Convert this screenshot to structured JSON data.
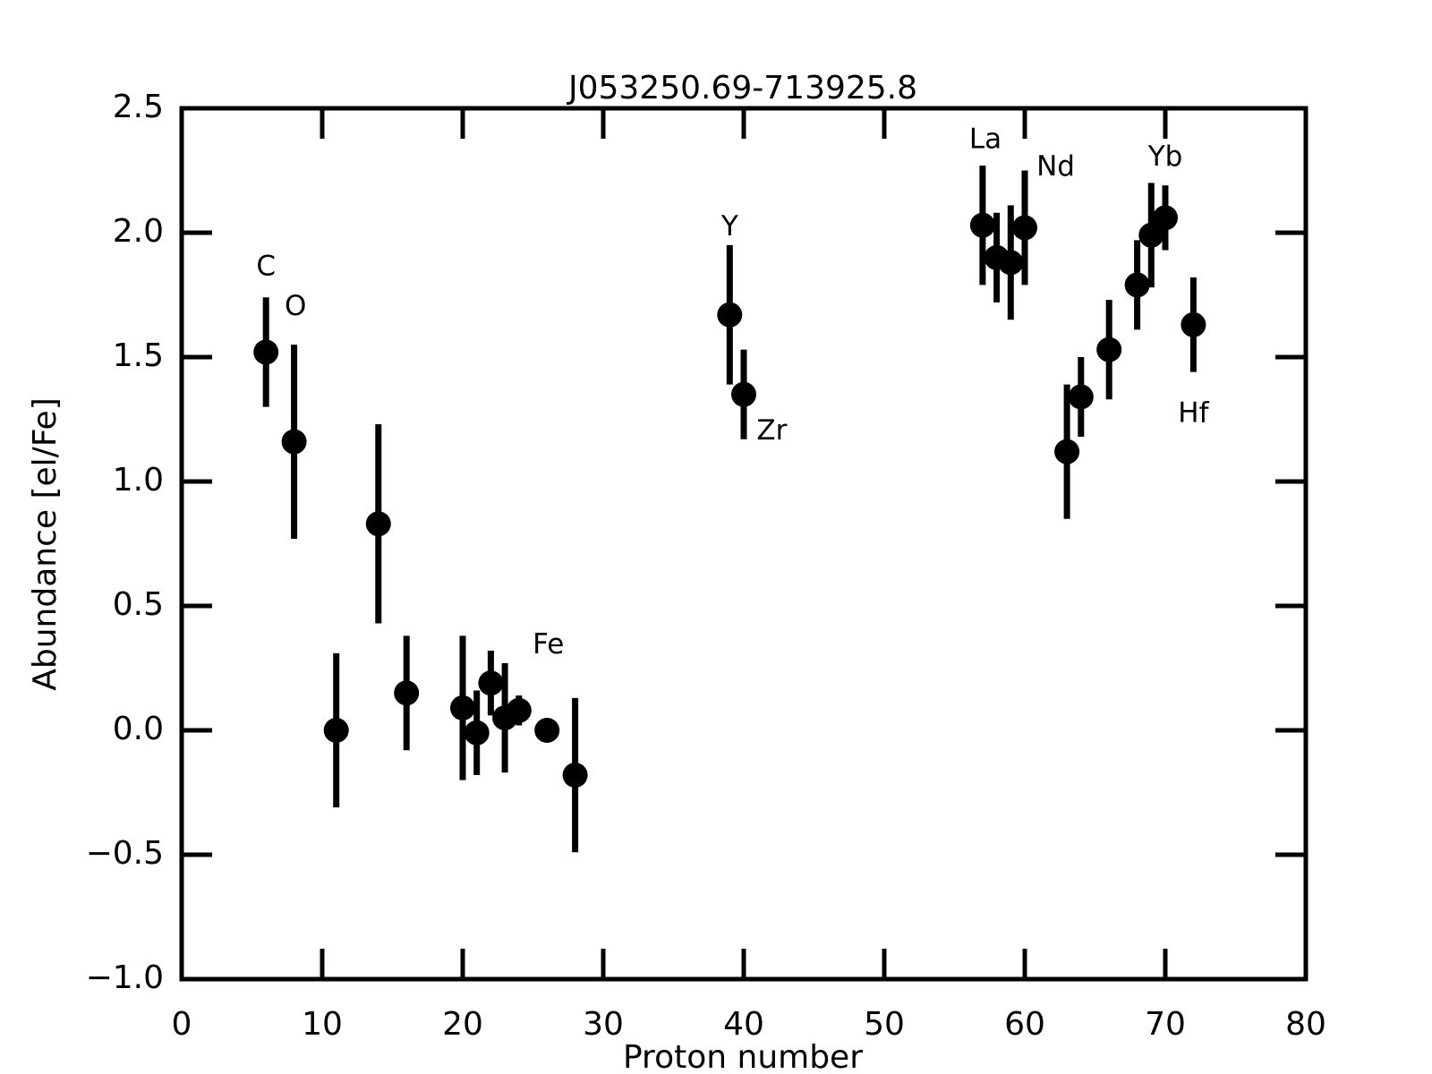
{
  "chart_data": {
    "type": "errorbar",
    "title": "J053250.69-713925.8",
    "xlabel": "Proton number",
    "ylabel": "Abundance [el/Fe]",
    "color": "#000000",
    "x": [
      6,
      8,
      11,
      14,
      16,
      20,
      21,
      22,
      23,
      24,
      26,
      28,
      39,
      40,
      57,
      58,
      59,
      60,
      63,
      64,
      66,
      68,
      69,
      70,
      72
    ],
    "values": [
      1.52,
      1.16,
      0.0,
      0.83,
      0.15,
      0.09,
      -0.01,
      0.19,
      0.05,
      0.08,
      0.0,
      -0.18,
      1.67,
      1.35,
      2.03,
      1.9,
      1.88,
      2.02,
      1.12,
      1.34,
      1.53,
      1.79,
      1.99,
      2.06,
      1.63
    ],
    "errors": [
      0.22,
      0.39,
      0.31,
      0.4,
      0.23,
      0.29,
      0.17,
      0.13,
      0.22,
      0.06,
      0.0,
      0.31,
      0.28,
      0.18,
      0.24,
      0.18,
      0.23,
      0.23,
      0.27,
      0.16,
      0.2,
      0.18,
      0.21,
      0.13,
      0.19
    ],
    "annotations": [
      {
        "text": "C",
        "x": 6,
        "y": 1.86
      },
      {
        "text": "O",
        "x": 8.1,
        "y": 1.7
      },
      {
        "text": "Fe",
        "x": 26.1,
        "y": 0.34
      },
      {
        "text": "Y",
        "x": 39,
        "y": 2.02
      },
      {
        "text": "Zr",
        "x": 42,
        "y": 1.2
      },
      {
        "text": "La",
        "x": 57.2,
        "y": 2.37
      },
      {
        "text": "Nd",
        "x": 62.2,
        "y": 2.26
      },
      {
        "text": "Yb",
        "x": 70,
        "y": 2.3
      },
      {
        "text": "Hf",
        "x": 72,
        "y": 1.27
      }
    ],
    "xlim": [
      0,
      80
    ],
    "xticks": [
      0,
      10,
      20,
      30,
      40,
      50,
      60,
      70,
      80
    ],
    "ylim": [
      -1.0,
      2.5
    ],
    "yticks": [
      {
        "value": -1.0,
        "label": "−1.0"
      },
      {
        "value": -0.5,
        "label": "−0.5"
      },
      {
        "value": 0.0,
        "label": "0.0"
      },
      0.5,
      {
        "value": 1.0,
        "label": "1.0"
      },
      1.5,
      {
        "value": 2.0,
        "label": "2.0"
      },
      2.5
    ]
  }
}
